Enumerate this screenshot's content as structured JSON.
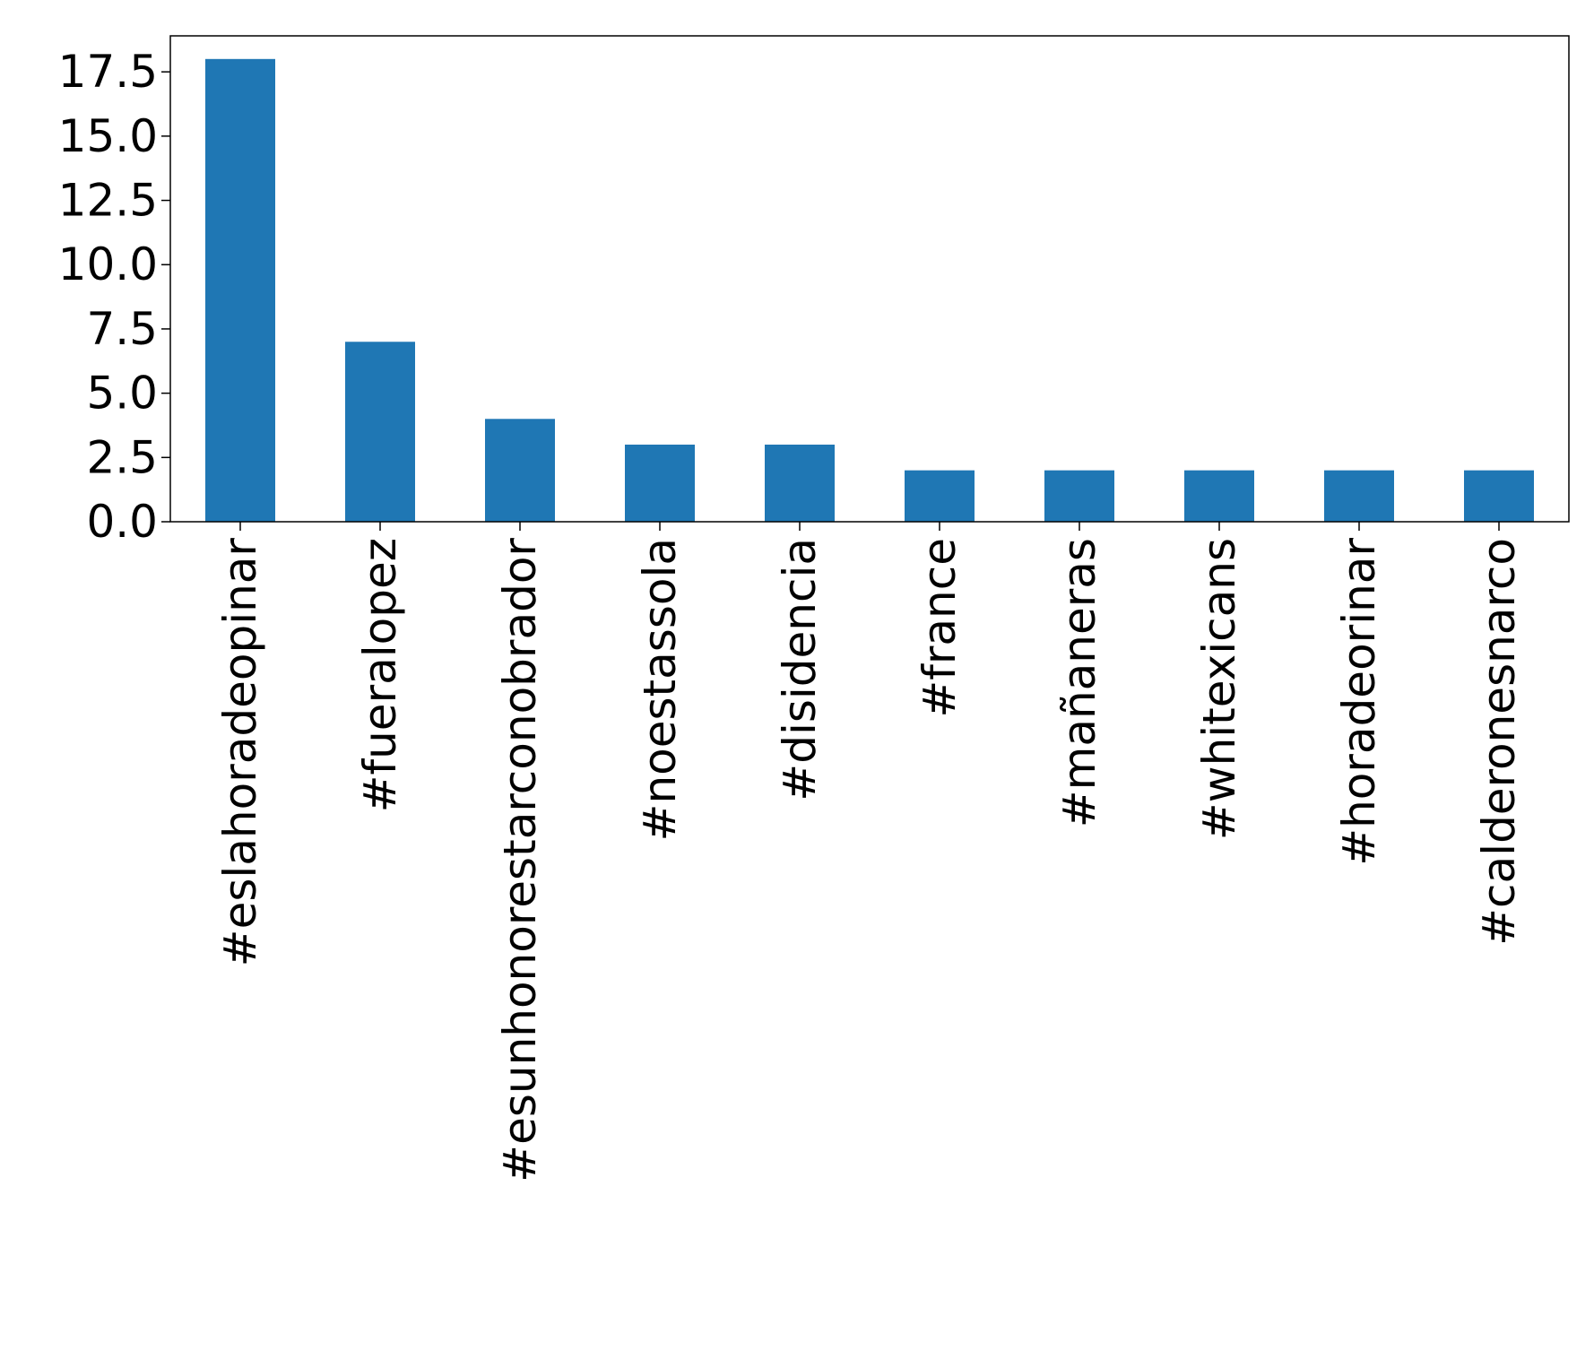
{
  "chart_data": {
    "type": "bar",
    "title": "",
    "xlabel": "",
    "ylabel": "",
    "categories": [
      "#eslahoradeopinar",
      "#fueralopez",
      "#esunhonorestarconobrador",
      "#noestassola",
      "#disidencia",
      "#france",
      "#mañaneras",
      "#whitexicans",
      "#horadeorinar",
      "#calderonesnarco"
    ],
    "values": [
      18,
      7,
      4,
      3,
      3,
      2,
      2,
      2,
      2,
      2
    ],
    "ylim": [
      0,
      18.9
    ],
    "yticks": [
      "0.0",
      "2.5",
      "5.0",
      "7.5",
      "10.0",
      "12.5",
      "15.0",
      "17.5"
    ],
    "bar_color": "#1f77b4",
    "grid": false,
    "legend": "none"
  }
}
